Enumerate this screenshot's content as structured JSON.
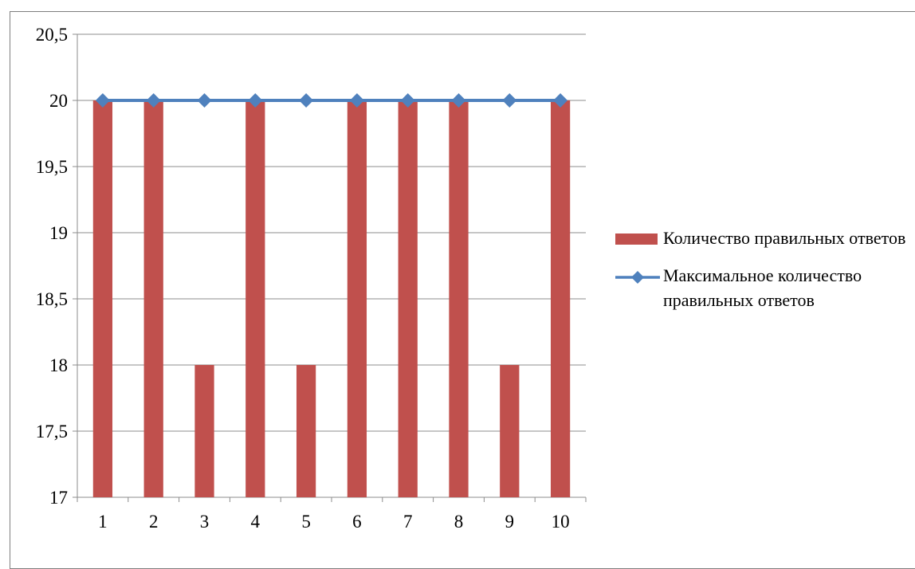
{
  "chart_data": {
    "type": "bar",
    "categories": [
      "1",
      "2",
      "3",
      "4",
      "5",
      "6",
      "7",
      "8",
      "9",
      "10"
    ],
    "series": [
      {
        "name": "Количество правильных ответов",
        "type": "bar",
        "color": "#c0504d",
        "values": [
          20,
          20,
          18,
          20,
          18,
          20,
          20,
          20,
          18,
          20
        ]
      },
      {
        "name": "Максимальное количество правильных ответов",
        "type": "line",
        "marker": "diamond",
        "color": "#4f81bd",
        "values": [
          20,
          20,
          20,
          20,
          20,
          20,
          20,
          20,
          20,
          20
        ]
      }
    ],
    "ylim": [
      17,
      20.5
    ],
    "yticks": [
      "17",
      "17,5",
      "18",
      "18,5",
      "19",
      "19,5",
      "20",
      "20,5"
    ],
    "grid": true,
    "legend_position": "right"
  }
}
